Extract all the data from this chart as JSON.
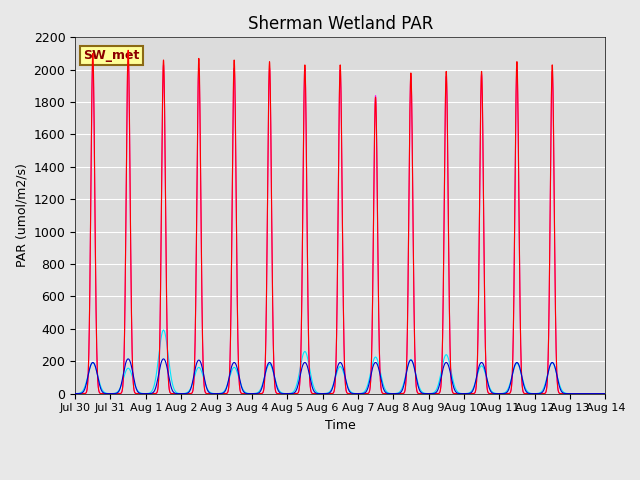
{
  "title": "Sherman Wetland PAR",
  "ylabel": "PAR (umol/m2/s)",
  "xlabel": "Time",
  "annotation": "SW_met",
  "ylim": [
    0,
    2200
  ],
  "xtick_labels": [
    "Jul 30",
    "Jul 31",
    "Aug 1",
    "Aug 2",
    "Aug 3",
    "Aug 4",
    "Aug 5",
    "Aug 6",
    "Aug 7",
    "Aug 8",
    "Aug 9",
    "Aug 10",
    "Aug 11",
    "Aug 12",
    "Aug 13",
    "Aug 14"
  ],
  "line_colors": {
    "PAR_in": "#ff0000",
    "PAR_out": "#0000cc",
    "totPAR": "#ff00ff",
    "difPAR": "#00e5ff"
  },
  "background_color": "#dcdcdc",
  "grid_color": "#ffffff",
  "annotation_bg": "#ffff99",
  "annotation_border": "#8b6914",
  "title_fontsize": 12,
  "axis_fontsize": 9,
  "legend_fontsize": 10,
  "peak_centers": [
    0.5,
    1.5,
    2.5,
    3.5,
    4.5,
    5.5,
    6.5,
    7.5,
    8.5,
    9.5,
    10.5,
    11.5,
    12.5,
    13.5
  ],
  "peak_heights_PAR_in": [
    2100,
    2120,
    2060,
    2070,
    2060,
    2050,
    2030,
    2030,
    1830,
    1980,
    1990,
    1990,
    2050,
    2030
  ],
  "peak_heights_totPAR": [
    2050,
    2080,
    2030,
    2010,
    2010,
    2010,
    2010,
    2000,
    1840,
    1960,
    1960,
    1970,
    2000,
    1990
  ],
  "peak_heights_PAR_out": [
    130,
    145,
    145,
    140,
    130,
    130,
    130,
    130,
    130,
    140,
    130,
    130,
    130,
    130
  ],
  "peak_heights_difPAR": [
    195,
    160,
    400,
    165,
    165,
    185,
    265,
    170,
    230,
    215,
    245,
    175,
    190,
    195
  ],
  "total_days": 15
}
